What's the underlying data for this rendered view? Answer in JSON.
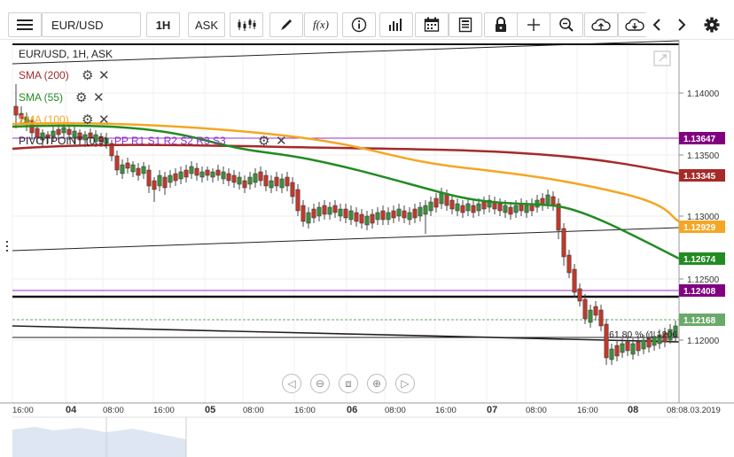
{
  "toolbar": {
    "symbol": "EUR/USD",
    "timeframe": "1H",
    "price_type": "ASK",
    "fx_label": "f(x)",
    "icons": [
      "menu-icon",
      "candle-type-icon",
      "draw-pen-icon",
      "indicator-fx-icon",
      "info-icon",
      "volume-bars-icon",
      "calendar-icon",
      "news-icon",
      "lock-icon",
      "crosshair-icon",
      "zoom-icon",
      "upload-icon",
      "download-icon",
      "chevron-left-icon",
      "chevron-right-icon",
      "settings-icon"
    ]
  },
  "chart": {
    "instrument_label": "EUR/USD, 1H, ASK",
    "indicators": [
      {
        "label": "SMA (200)",
        "color": "#a52a2a"
      },
      {
        "label": "SMA (55)",
        "color": "#228b22"
      },
      {
        "label": "SMA (100)",
        "color": "#f5a623"
      },
      {
        "label": "PIVOTPOINT (0.9)",
        "color": "#222222"
      }
    ],
    "pivot_sublabels": [
      "PP",
      "R1",
      "S1",
      "R2",
      "S2",
      "R3",
      "S3"
    ],
    "pivot_sublabel_color": "#8b2fc9",
    "fib_label": "61.80 % (1.1206",
    "price_axis": {
      "ticks": [
        "1.14000",
        "1.13500",
        "1.13000",
        "1.12500",
        "1.12000"
      ],
      "markers": [
        {
          "value": "1.13647",
          "color": "#800080"
        },
        {
          "value": "1.13345",
          "color": "#a52a2a"
        },
        {
          "value": "1.12929",
          "color": "#f5a623"
        },
        {
          "value": "1.12674",
          "color": "#228b22"
        },
        {
          "value": "1.12408",
          "color": "#800080"
        },
        {
          "value": "1.12168",
          "color": "#6aa96a"
        }
      ]
    },
    "time_axis": {
      "labels": [
        "16:00",
        "04",
        "08:00",
        "16:00",
        "05",
        "08:00",
        "16:00",
        "06",
        "08:00",
        "16:00",
        "07",
        "08:00",
        "16:00",
        "08",
        "08:08.03.2019"
      ],
      "bold": [
        "04",
        "05",
        "06",
        "07",
        "08"
      ]
    },
    "nav_controls": [
      "nav-left-icon",
      "zoom-out-icon",
      "fit-icon",
      "zoom-in-icon",
      "nav-right-icon"
    ]
  }
}
